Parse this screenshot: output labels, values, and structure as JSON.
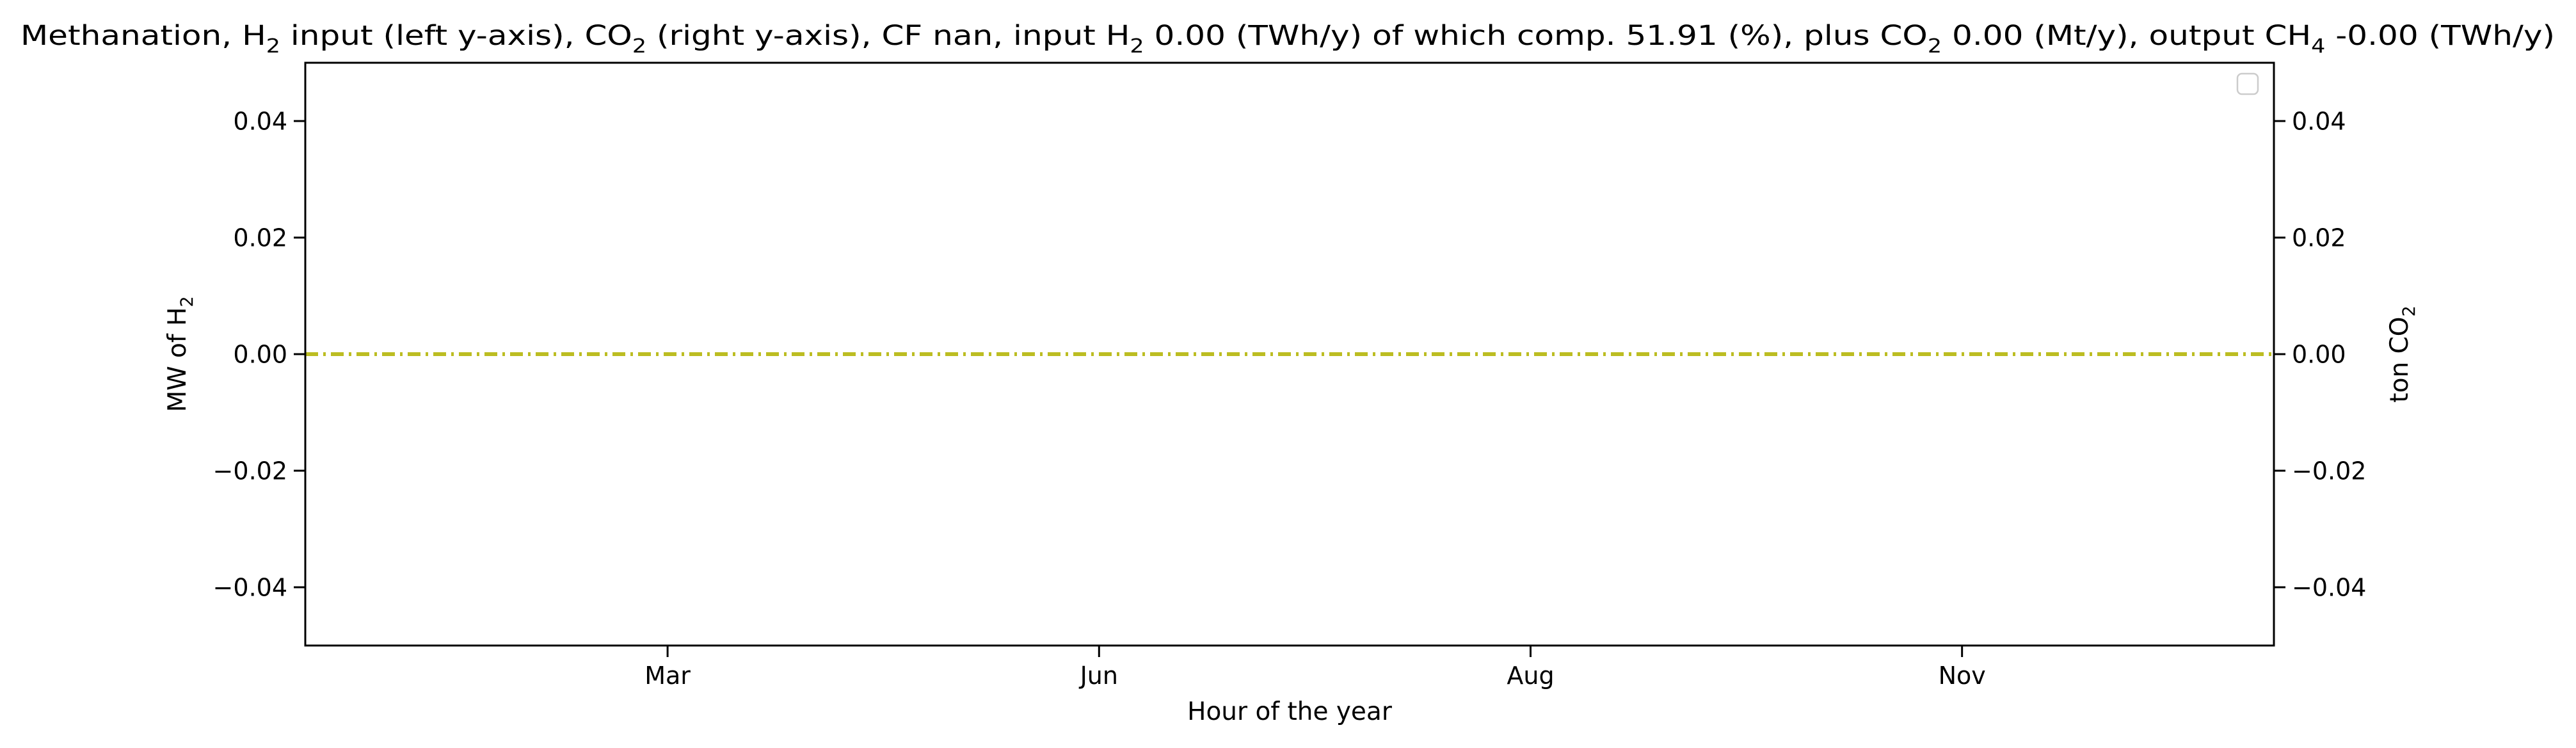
{
  "chart_data": {
    "type": "line",
    "title": {
      "segments": [
        {
          "text": "Methanation, H"
        },
        {
          "text": "2",
          "sub": true
        },
        {
          "text": " input (left y-axis), CO"
        },
        {
          "text": "2",
          "sub": true
        },
        {
          "text": " (right y-axis), CF nan, input H"
        },
        {
          "text": "2",
          "sub": true
        },
        {
          "text": " 0.00 (TWh/y) of which comp. 51.91 (%), plus CO"
        },
        {
          "text": "2",
          "sub": true
        },
        {
          "text": " 0.00 (Mt/y), output CH"
        },
        {
          "text": "4",
          "sub": true
        },
        {
          "text": " -0.00 (TWh/y)"
        }
      ]
    },
    "xlabel": "Hour of the year",
    "ylabel_left": {
      "segments": [
        {
          "text": "MW of H"
        },
        {
          "text": "2",
          "sub": true
        }
      ]
    },
    "ylabel_right": {
      "segments": [
        {
          "text": "ton CO"
        },
        {
          "text": "2",
          "sub": true
        }
      ]
    },
    "x_ticks": [
      {
        "label": "Mar",
        "hour": 1416
      },
      {
        "label": "Jun",
        "hour": 3624
      },
      {
        "label": "Aug",
        "hour": 5832
      },
      {
        "label": "Nov",
        "hour": 8040
      }
    ],
    "xlim": [
      -438,
      9636
    ],
    "ylim_left": [
      -0.05,
      0.05
    ],
    "ylim_right": [
      -0.05,
      0.05
    ],
    "y_ticks_left": [
      {
        "value": 0.04,
        "label": "0.04"
      },
      {
        "value": 0.02,
        "label": "0.02"
      },
      {
        "value": 0.0,
        "label": "0.00"
      },
      {
        "value": -0.02,
        "label": "−0.02"
      },
      {
        "value": -0.04,
        "label": "−0.04"
      }
    ],
    "y_ticks_right": [
      {
        "value": 0.04,
        "label": "0.04"
      },
      {
        "value": 0.02,
        "label": "0.02"
      },
      {
        "value": 0.0,
        "label": "0.00"
      },
      {
        "value": -0.02,
        "label": "−0.02"
      },
      {
        "value": -0.04,
        "label": "−0.04"
      }
    ],
    "series": [
      {
        "axis": "left",
        "color": "#bcbd22",
        "linestyle": "dashdot",
        "x": [
          -438,
          9636
        ],
        "y": [
          0,
          0
        ]
      }
    ],
    "grid": false,
    "legend": {
      "placement": "top-right",
      "entries": []
    }
  }
}
